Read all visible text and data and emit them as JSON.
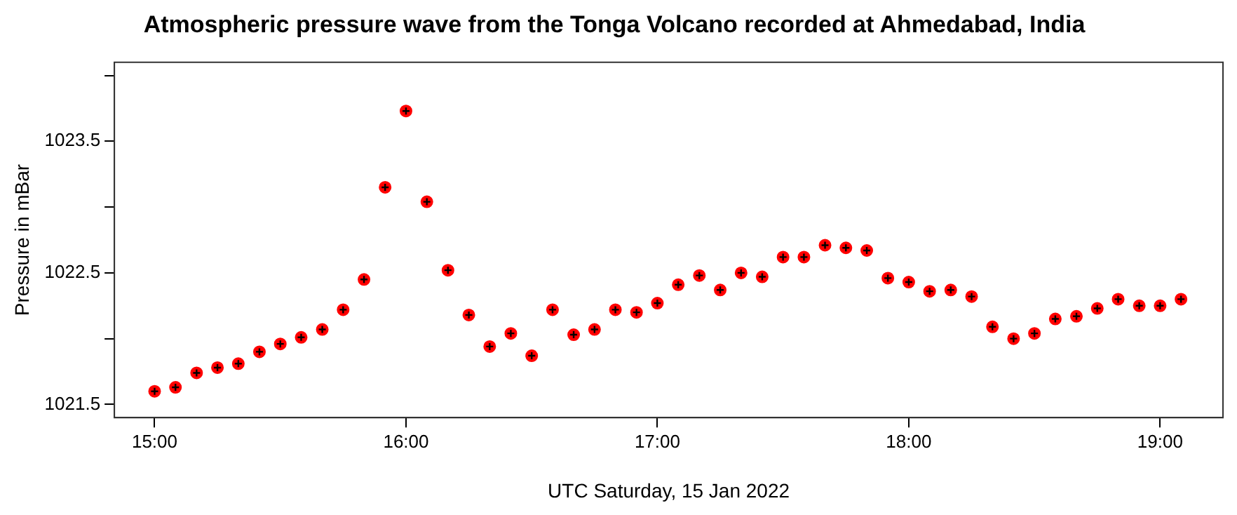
{
  "chart_data": {
    "type": "scatter",
    "title": "Atmospheric pressure wave from the Tonga Volcano recorded at Ahmedabad, India",
    "xlabel": "UTC Saturday, 15 Jan 2022",
    "ylabel": "Pressure in mBar",
    "x": [
      15,
      15.083,
      15.167,
      15.25,
      15.333,
      15.417,
      15.5,
      15.583,
      15.667,
      15.75,
      15.833,
      15.917,
      16,
      16.083,
      16.167,
      16.25,
      16.333,
      16.417,
      16.5,
      16.583,
      16.667,
      16.75,
      16.833,
      16.917,
      17,
      17.083,
      17.167,
      17.25,
      17.333,
      17.417,
      17.5,
      17.583,
      17.667,
      17.75,
      17.833,
      17.917,
      18,
      18.083,
      18.167,
      18.25,
      18.333,
      18.417,
      18.5,
      18.583,
      18.667,
      18.75,
      18.833,
      18.917,
      19,
      19.083
    ],
    "series": [
      {
        "color": "#ff0000",
        "values": [
          1021.6,
          1021.63,
          1021.74,
          1021.78,
          1021.81,
          1021.9,
          1021.96,
          1022.01,
          1022.07,
          1022.22,
          1022.45,
          1023.15,
          1023.73,
          1023.04,
          1022.52,
          1022.18,
          1021.94,
          1022.04,
          1021.87,
          1022.22,
          1022.03,
          1022.07,
          1022.22,
          1022.2,
          1022.27,
          1022.41,
          1022.48,
          1022.37,
          1022.5,
          1022.47,
          1022.62,
          1022.62,
          1022.71,
          1022.69,
          1022.67,
          1022.46,
          1022.43,
          1022.36,
          1022.37,
          1022.32,
          1022.09,
          1022,
          1022.04,
          1022.15,
          1022.17,
          1022.23,
          1022.3,
          1022.25,
          1022.25,
          1022.3
        ]
      }
    ],
    "xlim": [
      14.84,
      19.25
    ],
    "xticks": [
      {
        "value": 15,
        "label": "15:00"
      },
      {
        "value": 16,
        "label": "16:00"
      },
      {
        "value": 17,
        "label": "17:00"
      },
      {
        "value": 18,
        "label": "18:00"
      },
      {
        "value": 19,
        "label": "19:00"
      }
    ],
    "ylim": [
      1021.4,
      1024.1
    ],
    "yticks": [
      1021.5,
      {
        "value": 1022,
        "label": null
      },
      1022.5,
      {
        "value": 1023,
        "label": null
      },
      1023.5,
      {
        "value": 1024,
        "label": null
      }
    ],
    "marker": "circle",
    "grid": false,
    "legend": false
  }
}
